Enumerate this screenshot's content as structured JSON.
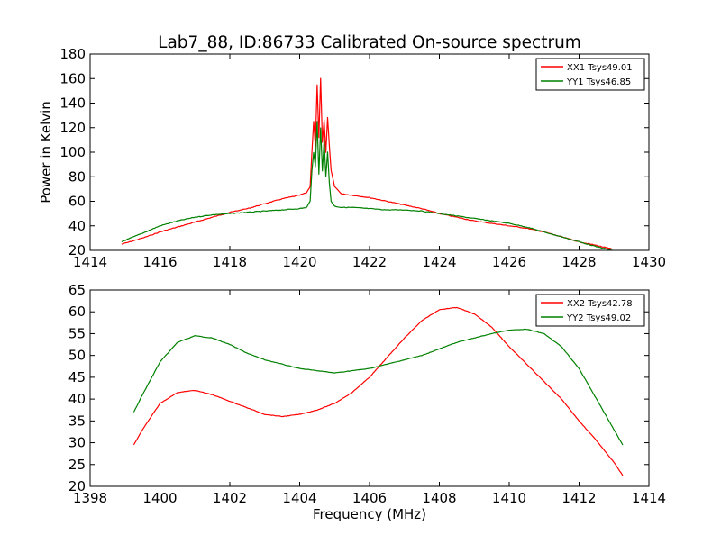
{
  "chart_data": [
    {
      "type": "line",
      "title": "Lab7_88, ID:86733 Calibrated On-source spectrum",
      "xlabel": "",
      "ylabel": "Power in Kelvin",
      "xlim": [
        1414,
        1430
      ],
      "ylim": [
        20,
        180
      ],
      "xticks": [
        1414,
        1416,
        1418,
        1420,
        1422,
        1424,
        1426,
        1428,
        1430
      ],
      "yticks": [
        20,
        40,
        60,
        80,
        100,
        120,
        140,
        160,
        180
      ],
      "grid": false,
      "legend": "top-right",
      "series": [
        {
          "name": "XX1 Tsys49.01",
          "color": "#ff0000",
          "x": [
            1414.9,
            1415.5,
            1416.0,
            1416.5,
            1417.0,
            1417.5,
            1418.0,
            1418.5,
            1419.0,
            1419.5,
            1420.0,
            1420.2,
            1420.3,
            1420.35,
            1420.4,
            1420.45,
            1420.5,
            1420.55,
            1420.6,
            1420.65,
            1420.7,
            1420.75,
            1420.8,
            1420.85,
            1420.9,
            1421.0,
            1421.2,
            1421.5,
            1422.0,
            1422.5,
            1423.0,
            1423.5,
            1424.0,
            1424.5,
            1425.0,
            1425.5,
            1426.0,
            1426.5,
            1427.0,
            1427.5,
            1428.0,
            1428.5,
            1428.95
          ],
          "y": [
            25,
            30,
            35,
            39,
            43,
            47,
            51,
            54,
            58,
            62,
            65,
            67,
            72,
            100,
            125,
            105,
            155,
            112,
            160,
            108,
            126,
            100,
            128,
            105,
            85,
            72,
            66,
            65,
            63,
            60,
            57,
            54,
            50,
            47,
            44,
            42,
            40,
            38,
            35,
            31,
            27,
            24,
            21
          ]
        },
        {
          "name": "YY1 Tsys46.85",
          "color": "#008000",
          "x": [
            1414.9,
            1415.5,
            1416.0,
            1416.5,
            1417.0,
            1417.5,
            1418.0,
            1418.5,
            1419.0,
            1419.5,
            1420.0,
            1420.2,
            1420.3,
            1420.35,
            1420.4,
            1420.45,
            1420.5,
            1420.55,
            1420.6,
            1420.65,
            1420.7,
            1420.75,
            1420.8,
            1420.85,
            1420.9,
            1421.0,
            1421.2,
            1421.5,
            1422.0,
            1422.5,
            1423.0,
            1423.5,
            1424.0,
            1424.5,
            1425.0,
            1425.5,
            1426.0,
            1426.5,
            1427.0,
            1427.5,
            1428.0,
            1428.5,
            1428.95
          ],
          "y": [
            27,
            34,
            40,
            44,
            47,
            49,
            50,
            51,
            52,
            53,
            54,
            55,
            60,
            85,
            100,
            88,
            125,
            82,
            120,
            85,
            110,
            80,
            100,
            75,
            60,
            56,
            55,
            55,
            54,
            53,
            53,
            52,
            50,
            48,
            46,
            44,
            42,
            39,
            35,
            31,
            27,
            23,
            20
          ]
        }
      ]
    },
    {
      "type": "line",
      "title": "",
      "xlabel": "Frequency (MHz)",
      "ylabel": "",
      "xlim": [
        1398,
        1414
      ],
      "ylim": [
        20,
        65
      ],
      "xticks": [
        1398,
        1400,
        1402,
        1404,
        1406,
        1408,
        1410,
        1412,
        1414
      ],
      "yticks": [
        20,
        25,
        30,
        35,
        40,
        45,
        50,
        55,
        60,
        65
      ],
      "grid": false,
      "legend": "top-right",
      "series": [
        {
          "name": "XX2 Tsys42.78",
          "color": "#ff0000",
          "x": [
            1399.25,
            1399.5,
            1400.0,
            1400.5,
            1401.0,
            1401.5,
            1402.0,
            1402.5,
            1403.0,
            1403.5,
            1404.0,
            1404.5,
            1405.0,
            1405.5,
            1406.0,
            1406.5,
            1407.0,
            1407.5,
            1408.0,
            1408.5,
            1409.0,
            1409.5,
            1410.0,
            1410.5,
            1411.0,
            1411.5,
            1412.0,
            1412.5,
            1413.0,
            1413.25
          ],
          "y": [
            29.5,
            33,
            39,
            41.5,
            42,
            41,
            39.5,
            38,
            36.5,
            36,
            36.5,
            37.5,
            39,
            41.5,
            45,
            49.5,
            54,
            58,
            60.5,
            61,
            59.5,
            56.5,
            52,
            48,
            44,
            40,
            35,
            30.5,
            25.5,
            22.5
          ]
        },
        {
          "name": "YY2 Tsys49.02",
          "color": "#008000",
          "x": [
            1399.25,
            1399.5,
            1400.0,
            1400.5,
            1401.0,
            1401.5,
            1402.0,
            1402.5,
            1403.0,
            1403.5,
            1404.0,
            1404.5,
            1405.0,
            1405.5,
            1406.0,
            1406.5,
            1407.0,
            1407.5,
            1408.0,
            1408.5,
            1409.0,
            1409.5,
            1410.0,
            1410.5,
            1411.0,
            1411.5,
            1412.0,
            1412.5,
            1413.0,
            1413.25
          ],
          "y": [
            37,
            41,
            48.5,
            53,
            54.5,
            54,
            52.5,
            50.5,
            49,
            48,
            47,
            46.5,
            46,
            46.5,
            47,
            48,
            49,
            50,
            51.5,
            53,
            54,
            55,
            55.8,
            56,
            55,
            52,
            47,
            40,
            33,
            29.5
          ]
        }
      ]
    }
  ]
}
